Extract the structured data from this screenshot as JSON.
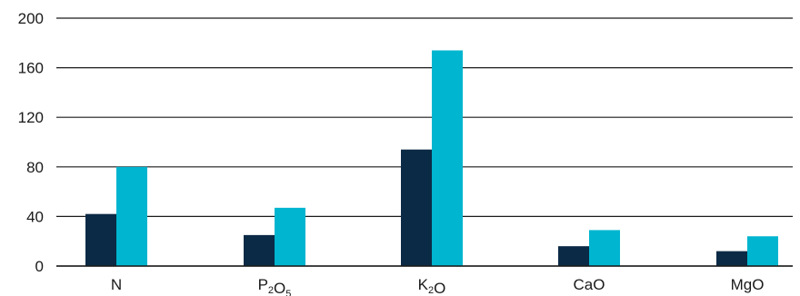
{
  "chart_data": {
    "type": "bar",
    "categories": [
      {
        "base": "N",
        "parts": [
          [
            "N",
            ""
          ]
        ]
      },
      {
        "base": "P2O5",
        "parts": [
          [
            "P",
            "2"
          ],
          [
            "O",
            "5"
          ]
        ]
      },
      {
        "base": "K2O",
        "parts": [
          [
            "K",
            "2"
          ],
          [
            "O",
            ""
          ]
        ]
      },
      {
        "base": "CaO",
        "parts": [
          [
            "CaO",
            ""
          ]
        ]
      },
      {
        "base": "MgO",
        "parts": [
          [
            "MgO",
            ""
          ]
        ]
      }
    ],
    "series": [
      {
        "values": [
          42,
          25,
          94,
          16,
          12
        ],
        "color": "#0b2a45"
      },
      {
        "values": [
          80,
          47,
          174,
          29,
          24
        ],
        "color": "#00b5cf"
      }
    ],
    "ylim": [
      0,
      200
    ],
    "yticks": [
      0,
      40,
      80,
      120,
      160,
      200
    ],
    "title": "",
    "xlabel": "",
    "ylabel": "",
    "grid": true,
    "legend": "none"
  }
}
